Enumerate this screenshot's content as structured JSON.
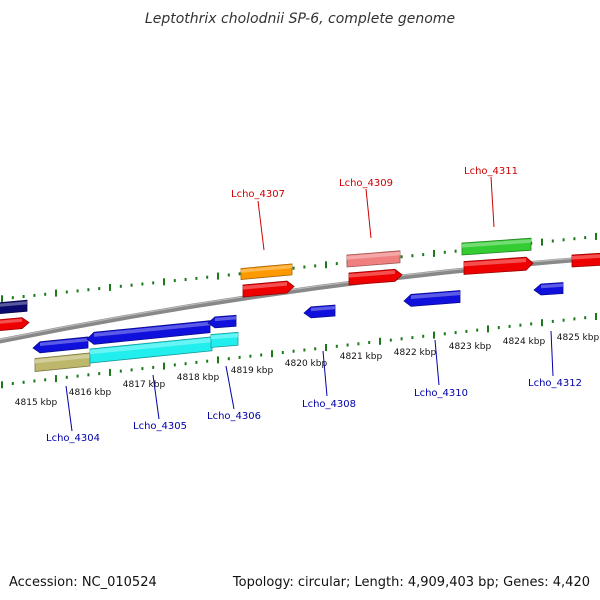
{
  "title": "Leptothrix cholodnii SP-6, complete genome",
  "footer": {
    "accession": "Accession: NC_010524",
    "summary": "Topology: circular; Length: 4,909,403 bp; Genes: 4,420"
  },
  "colors": {
    "backbone": "#888888",
    "tick": "#1a7a1a",
    "forward_label": "#cc0000",
    "reverse_label": "#0000aa",
    "red": "#ee0000",
    "blue": "#1010dd",
    "navy": "#0a0a6e",
    "cyan": "#22eeee",
    "khaki": "#bdb76b",
    "orange": "#ff9900",
    "salmon": "#f08080",
    "green": "#33cc33"
  },
  "scale_labels": [
    "4815 kbp",
    "4816 kbp",
    "4817 kbp",
    "4818 kbp",
    "4819 kbp",
    "4820 kbp",
    "4821 kbp",
    "4822 kbp",
    "4823 kbp",
    "4824 kbp",
    "4825 kbp"
  ],
  "gene_labels": {
    "forward": [
      "Lcho_4307",
      "Lcho_4309",
      "Lcho_4311"
    ],
    "reverse": [
      "Lcho_4304",
      "Lcho_4305",
      "Lcho_4306",
      "Lcho_4308",
      "Lcho_4310",
      "Lcho_4312"
    ]
  },
  "features": [
    {
      "name": "navy-feature-left",
      "color": "navy",
      "strand": "forward"
    },
    {
      "name": "red-feature-left",
      "color": "red",
      "strand": "forward"
    },
    {
      "name": "blue-feature-4304",
      "color": "blue",
      "strand": "reverse"
    },
    {
      "name": "khaki-feature-4304",
      "color": "khaki",
      "strand": "reverse"
    },
    {
      "name": "blue-feature-4305",
      "color": "blue",
      "strand": "reverse"
    },
    {
      "name": "cyan-feature-4305",
      "color": "cyan",
      "strand": "reverse"
    },
    {
      "name": "blue-feature-4306",
      "color": "blue",
      "strand": "reverse"
    },
    {
      "name": "cyan-feature-4306",
      "color": "cyan",
      "strand": "reverse"
    },
    {
      "name": "orange-feature-4307",
      "color": "orange",
      "strand": "forward"
    },
    {
      "name": "red-feature-4307",
      "color": "red",
      "strand": "forward"
    },
    {
      "name": "blue-feature-4308",
      "color": "blue",
      "strand": "reverse"
    },
    {
      "name": "salmon-feature-4309",
      "color": "salmon",
      "strand": "forward"
    },
    {
      "name": "red-feature-4309",
      "color": "red",
      "strand": "forward"
    },
    {
      "name": "blue-feature-4310",
      "color": "blue",
      "strand": "reverse"
    },
    {
      "name": "green-feature-4311",
      "color": "green",
      "strand": "forward"
    },
    {
      "name": "red-feature-4311",
      "color": "red",
      "strand": "forward"
    },
    {
      "name": "blue-feature-4312",
      "color": "blue",
      "strand": "reverse"
    },
    {
      "name": "red-feature-right",
      "color": "red",
      "strand": "forward"
    }
  ]
}
